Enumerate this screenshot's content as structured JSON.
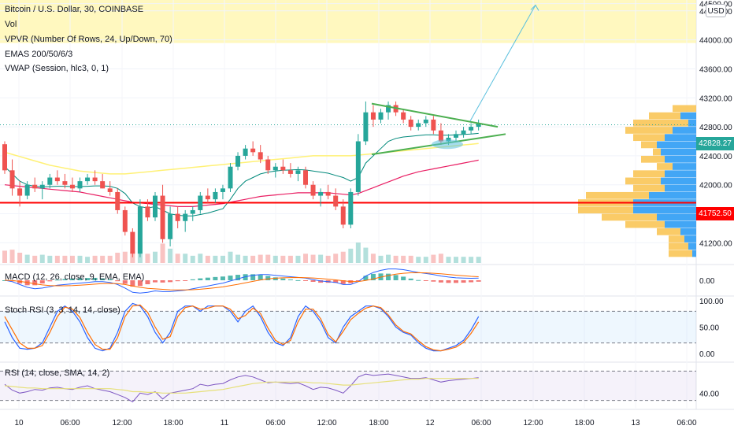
{
  "legend": {
    "symbol": "Bitcoin / U.S. Dollar, 30, COINBASE",
    "vol": "Vol",
    "vpvr": "VPVR (Number Of Rows, 24, Up/Down, 70)",
    "emas": "EMAS 200/50/6/3",
    "vwap": "VWAP (Session, hlc3, 0, 1)",
    "macd": "MACD (12, 26, close, 9, EMA, EMA)",
    "stoch": "Stoch RSI (3, 3, 14, 14, close)",
    "rsi": "RSI (14, close, SMA, 14, 2)"
  },
  "currency_button": "USD",
  "price_badges": {
    "last": "42828.27",
    "support": "41752.50"
  },
  "colors": {
    "up": "#26a69a",
    "down": "#ef5350",
    "support_line": "#ff0000",
    "pattern_lines": "#4caf50",
    "arrow": "#5bc0de",
    "highlight": "#fff59d",
    "vwap": "#00897b",
    "ema200": "#fff176",
    "ema50": "#e91e63",
    "macd": "#2962ff",
    "signal": "#ff6d00",
    "stoch_k": "#2962ff",
    "stoch_d": "#ff6d00",
    "rsi": "#7e57c2",
    "rsi_ma": "#e6e07a",
    "vpvr_up": "#2196f3",
    "vpvr_down": "#f9c24c"
  },
  "chart_data": [
    {
      "type": "candlestick",
      "title": "Bitcoin / U.S. Dollar, 30, COINBASE",
      "ylim": [
        40900,
        44550
      ],
      "y_ticks": [
        "44500.00",
        "44400.00",
        "44000.00",
        "43600.00",
        "43200.00",
        "42800.00",
        "42400.00",
        "42000.00",
        "41600.00",
        "41200.00"
      ],
      "x_ticks": [
        "10",
        "06:00",
        "12:00",
        "18:00",
        "11",
        "06:00",
        "12:00",
        "18:00",
        "12",
        "06:00",
        "12:00",
        "18:00",
        "13",
        "06:00"
      ],
      "last_price": 42828.27,
      "horizontal_line": 41752.5,
      "candles": [
        [
          42560,
          42600,
          42150,
          42200
        ],
        [
          42200,
          42350,
          41850,
          41950
        ],
        [
          41950,
          42050,
          41700,
          41850
        ],
        [
          41850,
          42050,
          41800,
          42000
        ],
        [
          42000,
          42100,
          41900,
          41950
        ],
        [
          41950,
          42050,
          41800,
          42000
        ],
        [
          42000,
          42150,
          41950,
          42100
        ],
        [
          42100,
          42200,
          42000,
          42050
        ],
        [
          42050,
          42150,
          41950,
          42000
        ],
        [
          42000,
          42100,
          41900,
          41950
        ],
        [
          41950,
          42100,
          41900,
          42050
        ],
        [
          42050,
          42150,
          42000,
          42100
        ],
        [
          42100,
          42200,
          42000,
          42050
        ],
        [
          42050,
          42150,
          41950,
          41950
        ],
        [
          41950,
          42050,
          41850,
          41900
        ],
        [
          41900,
          41950,
          41600,
          41650
        ],
        [
          41650,
          41700,
          41300,
          41350
        ],
        [
          41350,
          41400,
          41000,
          41050
        ],
        [
          41050,
          41800,
          41000,
          41700
        ],
        [
          41700,
          41800,
          41500,
          41550
        ],
        [
          41550,
          41900,
          41500,
          41850
        ],
        [
          41850,
          42000,
          41200,
          41250
        ],
        [
          41250,
          41700,
          41150,
          41600
        ],
        [
          41600,
          41700,
          41400,
          41500
        ],
        [
          41500,
          41650,
          41350,
          41600
        ],
        [
          41600,
          41700,
          41500,
          41650
        ],
        [
          41650,
          41900,
          41600,
          41850
        ],
        [
          41850,
          41950,
          41750,
          41800
        ],
        [
          41800,
          41950,
          41750,
          41900
        ],
        [
          41900,
          42000,
          41800,
          41950
        ],
        [
          41950,
          42300,
          41900,
          42250
        ],
        [
          42250,
          42450,
          42200,
          42400
        ],
        [
          42400,
          42550,
          42350,
          42500
        ],
        [
          42500,
          42600,
          42400,
          42450
        ],
        [
          42450,
          42550,
          42300,
          42350
        ],
        [
          42350,
          42400,
          42150,
          42200
        ],
        [
          42200,
          42300,
          42100,
          42250
        ],
        [
          42250,
          42350,
          42150,
          42200
        ],
        [
          42200,
          42300,
          42100,
          42150
        ],
        [
          42150,
          42250,
          42050,
          42200
        ],
        [
          42200,
          42250,
          41950,
          42000
        ],
        [
          42000,
          42050,
          41800,
          41850
        ],
        [
          41850,
          41950,
          41700,
          41900
        ],
        [
          41900,
          42000,
          41800,
          41850
        ],
        [
          41850,
          41950,
          41650,
          41700
        ],
        [
          41700,
          41800,
          41400,
          41450
        ],
        [
          41450,
          41950,
          41400,
          41900
        ],
        [
          41900,
          42700,
          41850,
          42600
        ],
        [
          42600,
          43150,
          42550,
          43000
        ],
        [
          43000,
          43100,
          42800,
          42900
        ],
        [
          42900,
          43050,
          42850,
          43000
        ],
        [
          43000,
          43150,
          42900,
          43100
        ],
        [
          43100,
          43150,
          42950,
          43000
        ],
        [
          43000,
          43050,
          42850,
          42900
        ],
        [
          42900,
          42950,
          42750,
          42800
        ],
        [
          42800,
          42900,
          42750,
          42850
        ],
        [
          42850,
          42950,
          42800,
          42900
        ],
        [
          42900,
          42950,
          42700,
          42750
        ],
        [
          42750,
          42850,
          42550,
          42600
        ],
        [
          42600,
          42700,
          42550,
          42650
        ],
        [
          42650,
          42750,
          42600,
          42700
        ],
        [
          42700,
          42800,
          42650,
          42750
        ],
        [
          42750,
          42850,
          42700,
          42800
        ],
        [
          42800,
          42900,
          42750,
          42850
        ]
      ],
      "ema200": [
        42450,
        42420,
        42390,
        42360,
        42330,
        42300,
        42270,
        42250,
        42230,
        42210,
        42190,
        42180,
        42170,
        42160,
        42150,
        42150,
        42150,
        42160,
        42170,
        42180,
        42190,
        42200,
        42210,
        42220,
        42230,
        42240,
        42250,
        42260,
        42270,
        42280,
        42290,
        42300,
        42310,
        42320,
        42330,
        42340,
        42350,
        42360,
        42370,
        42380,
        42390,
        42400,
        42400,
        42400,
        42400,
        42400,
        42400,
        42410,
        42420,
        42430,
        42440,
        42450,
        42460,
        42470,
        42480,
        42490,
        42500,
        42510,
        42520,
        42530,
        42540,
        42550,
        42560,
        42570
      ],
      "ema50": [
        42000,
        41990,
        41980,
        41970,
        41960,
        41950,
        41940,
        41930,
        41920,
        41910,
        41900,
        41880,
        41860,
        41840,
        41820,
        41800,
        41780,
        41760,
        41750,
        41740,
        41730,
        41720,
        41710,
        41700,
        41700,
        41700,
        41710,
        41720,
        41730,
        41740,
        41760,
        41780,
        41800,
        41820,
        41840,
        41850,
        41860,
        41870,
        41880,
        41890,
        41890,
        41890,
        41890,
        41890,
        41880,
        41870,
        41860,
        41880,
        41920,
        41960,
        42000,
        42040,
        42080,
        42120,
        42150,
        42180,
        42200,
        42220,
        42240,
        42260,
        42280,
        42300,
        42320,
        42340
      ],
      "vwap": [
        42250,
        42150,
        42050,
        42000,
        41980,
        41970,
        41975,
        41980,
        41980,
        41975,
        41975,
        41980,
        41985,
        41985,
        41980,
        41950,
        41880,
        41750,
        41700,
        41680,
        41700,
        41650,
        41600,
        41580,
        41570,
        41570,
        41590,
        41610,
        41640,
        41670,
        41800,
        41950,
        42050,
        42100,
        42150,
        42175,
        42190,
        42200,
        42205,
        42210,
        42205,
        42190,
        42175,
        42160,
        42130,
        42100,
        42050,
        42100,
        42300,
        42400,
        42500,
        42600,
        42640,
        42660,
        42670,
        42680,
        42690,
        42690,
        42685,
        42685,
        42690,
        42695,
        42700,
        42710
      ]
    },
    {
      "type": "histogram",
      "title": "MACD (12, 26, close, 9, EMA, EMA)",
      "y_ticks": [
        "0.00"
      ],
      "macd": [
        0,
        -20,
        -60,
        -100,
        -120,
        -110,
        -90,
        -70,
        -60,
        -50,
        -40,
        -30,
        -20,
        -20,
        -30,
        -60,
        -110,
        -170,
        -180,
        -170,
        -150,
        -160,
        -160,
        -150,
        -140,
        -120,
        -100,
        -80,
        -60,
        -40,
        -10,
        20,
        50,
        70,
        80,
        80,
        70,
        60,
        50,
        40,
        30,
        10,
        -10,
        -20,
        -30,
        -60,
        -60,
        -20,
        60,
        110,
        140,
        160,
        160,
        150,
        130,
        110,
        95,
        80,
        60,
        45,
        35,
        30,
        28,
        30
      ],
      "signal": [
        0,
        -5,
        -15,
        -30,
        -50,
        -65,
        -75,
        -78,
        -78,
        -75,
        -70,
        -62,
        -54,
        -47,
        -44,
        -47,
        -60,
        -80,
        -100,
        -114,
        -121,
        -128,
        -134,
        -137,
        -137,
        -133,
        -127,
        -117,
        -106,
        -93,
        -76,
        -57,
        -36,
        -15,
        4,
        19,
        29,
        35,
        38,
        39,
        37,
        32,
        24,
        15,
        6,
        -7,
        -18,
        -18,
        -3,
        20,
        44,
        67,
        86,
        99,
        106,
        107,
        104,
        99,
        91,
        82,
        72,
        64,
        56,
        50
      ]
    },
    {
      "type": "line",
      "title": "Stoch RSI (3, 3, 14, 14, close)",
      "ylim": [
        0,
        100
      ],
      "y_ticks": [
        "100.00",
        "50.00",
        "0.00"
      ],
      "bands": [
        80,
        20
      ],
      "k": [
        60,
        30,
        10,
        8,
        10,
        20,
        50,
        80,
        90,
        80,
        60,
        30,
        10,
        5,
        10,
        40,
        80,
        95,
        90,
        70,
        40,
        20,
        40,
        80,
        90,
        90,
        80,
        90,
        90,
        90,
        80,
        60,
        80,
        90,
        70,
        40,
        20,
        15,
        30,
        70,
        90,
        80,
        60,
        30,
        20,
        50,
        70,
        80,
        90,
        90,
        85,
        70,
        50,
        40,
        35,
        20,
        10,
        5,
        5,
        10,
        15,
        25,
        45,
        70
      ],
      "d": [
        70,
        45,
        20,
        10,
        10,
        15,
        40,
        70,
        88,
        84,
        68,
        40,
        17,
        8,
        8,
        30,
        70,
        90,
        92,
        78,
        50,
        27,
        32,
        70,
        87,
        90,
        84,
        86,
        90,
        90,
        84,
        66,
        72,
        86,
        76,
        48,
        25,
        17,
        25,
        60,
        84,
        84,
        66,
        36,
        22,
        42,
        64,
        76,
        86,
        90,
        87,
        73,
        54,
        42,
        37,
        24,
        13,
        7,
        5,
        8,
        12,
        21,
        38,
        60
      ]
    },
    {
      "type": "line",
      "title": "RSI (14, close, SMA, 14, 2)",
      "y_ticks": [
        "40.00"
      ],
      "rsi": [
        52,
        44,
        40,
        42,
        45,
        44,
        47,
        48,
        46,
        45,
        48,
        50,
        46,
        44,
        42,
        38,
        34,
        28,
        40,
        38,
        42,
        32,
        40,
        42,
        44,
        46,
        52,
        50,
        52,
        53,
        58,
        62,
        64,
        62,
        58,
        54,
        55,
        54,
        53,
        54,
        50,
        45,
        48,
        47,
        44,
        40,
        50,
        62,
        66,
        64,
        65,
        66,
        64,
        62,
        60,
        60,
        61,
        58,
        55,
        57,
        58,
        59,
        60,
        61
      ],
      "rsi_ma": [
        50,
        49,
        48,
        47,
        47,
        46,
        46,
        46,
        46,
        46,
        46,
        46,
        46,
        46,
        46,
        45,
        44,
        42,
        42,
        41,
        41,
        40,
        40,
        40,
        40,
        41,
        42,
        43,
        44,
        45,
        47,
        49,
        51,
        53,
        54,
        55,
        55,
        55,
        55,
        55,
        55,
        54,
        54,
        53,
        52,
        51,
        51,
        52,
        53,
        54,
        55,
        56,
        57,
        58,
        59,
        59,
        60,
        60,
        60,
        60,
        60,
        60,
        60,
        60
      ]
    }
  ]
}
